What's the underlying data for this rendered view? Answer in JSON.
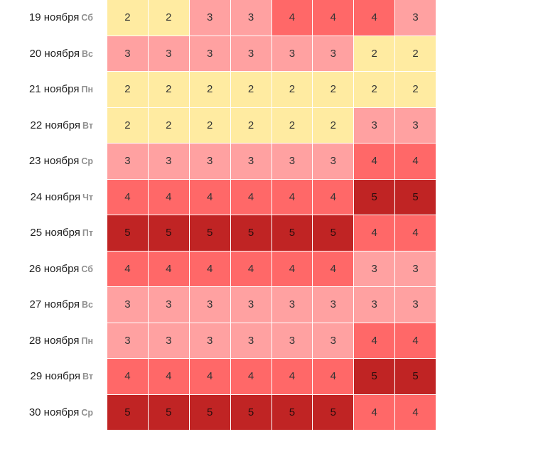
{
  "colors": {
    "level_2": "#ffeba1",
    "level_3": "#ffa1a1",
    "level_4": "#ff6868",
    "level_5": "#c02424"
  },
  "rows": [
    {
      "date": "19 ноября",
      "day": "Сб",
      "values": [
        2,
        2,
        3,
        3,
        4,
        4,
        4,
        3
      ]
    },
    {
      "date": "20 ноября",
      "day": "Вс",
      "values": [
        3,
        3,
        3,
        3,
        3,
        3,
        2,
        2
      ]
    },
    {
      "date": "21 ноября",
      "day": "Пн",
      "values": [
        2,
        2,
        2,
        2,
        2,
        2,
        2,
        2
      ]
    },
    {
      "date": "22 ноября",
      "day": "Вт",
      "values": [
        2,
        2,
        2,
        2,
        2,
        2,
        3,
        3
      ]
    },
    {
      "date": "23 ноября",
      "day": "Ср",
      "values": [
        3,
        3,
        3,
        3,
        3,
        3,
        4,
        4
      ]
    },
    {
      "date": "24 ноября",
      "day": "Чт",
      "values": [
        4,
        4,
        4,
        4,
        4,
        4,
        5,
        5
      ]
    },
    {
      "date": "25 ноября",
      "day": "Пт",
      "values": [
        5,
        5,
        5,
        5,
        5,
        5,
        4,
        4
      ]
    },
    {
      "date": "26 ноября",
      "day": "Сб",
      "values": [
        4,
        4,
        4,
        4,
        4,
        4,
        3,
        3
      ]
    },
    {
      "date": "27 ноября",
      "day": "Вс",
      "values": [
        3,
        3,
        3,
        3,
        3,
        3,
        3,
        3
      ]
    },
    {
      "date": "28 ноября",
      "day": "Пн",
      "values": [
        3,
        3,
        3,
        3,
        3,
        3,
        4,
        4
      ]
    },
    {
      "date": "29 ноября",
      "day": "Вт",
      "values": [
        4,
        4,
        4,
        4,
        4,
        4,
        5,
        5
      ]
    },
    {
      "date": "30 ноября",
      "day": "Ср",
      "values": [
        5,
        5,
        5,
        5,
        5,
        5,
        4,
        4
      ]
    }
  ]
}
